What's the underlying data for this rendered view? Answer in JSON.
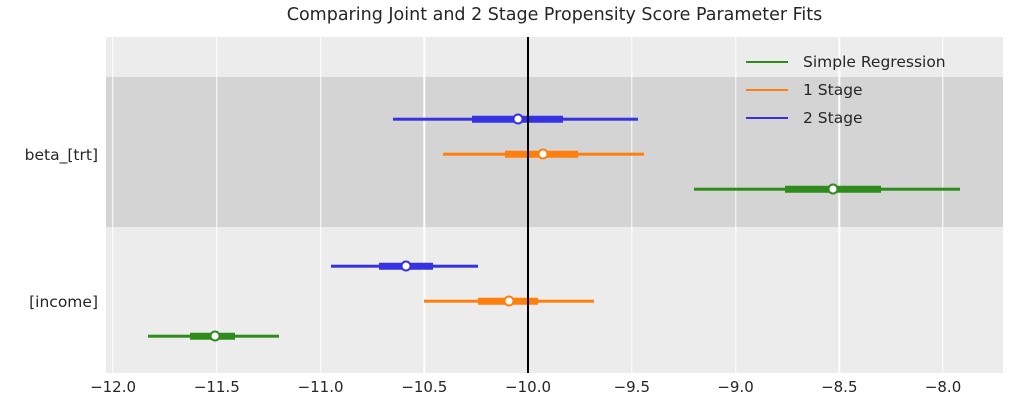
{
  "title": "Comparing Joint and 2 Stage Propensity Score Parameter Fits",
  "chart_data": {
    "type": "errorbar",
    "title": "Comparing Joint and 2 Stage Propensity Score Parameter Fits",
    "xlim": [
      -12.034,
      -7.711
    ],
    "x_ticks": [
      {
        "value": -12.0,
        "label": "−12.0"
      },
      {
        "value": -11.5,
        "label": "−11.5"
      },
      {
        "value": -11.0,
        "label": "−11.0"
      },
      {
        "value": -10.5,
        "label": "−10.5"
      },
      {
        "value": -10.0,
        "label": "−10.0"
      },
      {
        "value": -9.5,
        "label": "−9.5"
      },
      {
        "value": -9.0,
        "label": "−9.0"
      },
      {
        "value": -8.5,
        "label": "−8.5"
      },
      {
        "value": -8.0,
        "label": "−8.0"
      }
    ],
    "reference_line_x": -10.0,
    "grid": "vertical-white-on-gray",
    "legend_position": "upper-right",
    "categories": [
      "beta_[trt]",
      "[income]"
    ],
    "category_bands": [
      "dark",
      "light"
    ],
    "row_order_top_to_bottom": [
      "2 Stage",
      "1 Stage",
      "Simple Regression"
    ],
    "series": [
      {
        "name": "Simple Regression",
        "color": "#2e8b1c",
        "data": [
          {
            "category": "beta_[trt]",
            "point": -8.53,
            "ci_inner": [
              -8.76,
              -8.3
            ],
            "ci_outer": [
              -9.2,
              -7.92
            ]
          },
          {
            "category": "[income]",
            "point": -11.51,
            "ci_inner": [
              -11.63,
              -11.41
            ],
            "ci_outer": [
              -11.83,
              -11.2
            ]
          }
        ]
      },
      {
        "name": "1 Stage",
        "color": "#ff7f0e",
        "data": [
          {
            "category": "beta_[trt]",
            "point": -9.93,
            "ci_inner": [
              -10.11,
              -9.76
            ],
            "ci_outer": [
              -10.41,
              -9.44
            ]
          },
          {
            "category": "[income]",
            "point": -10.09,
            "ci_inner": [
              -10.24,
              -9.95
            ],
            "ci_outer": [
              -10.5,
              -9.68
            ]
          }
        ]
      },
      {
        "name": "2 Stage",
        "color": "#3632e3",
        "data": [
          {
            "category": "beta_[trt]",
            "point": -10.05,
            "ci_inner": [
              -10.27,
              -9.83
            ],
            "ci_outer": [
              -10.65,
              -9.47
            ]
          },
          {
            "category": "[income]",
            "point": -10.59,
            "ci_inner": [
              -10.72,
              -10.46
            ],
            "ci_outer": [
              -10.95,
              -10.24
            ]
          }
        ]
      }
    ],
    "colors": {
      "figure_background": "#ffffff",
      "plot_background": "#ececec",
      "band_dark": "#d4d4d4",
      "gridline": "#ffffff",
      "reference_line": "#000000",
      "text": "#262626"
    }
  }
}
